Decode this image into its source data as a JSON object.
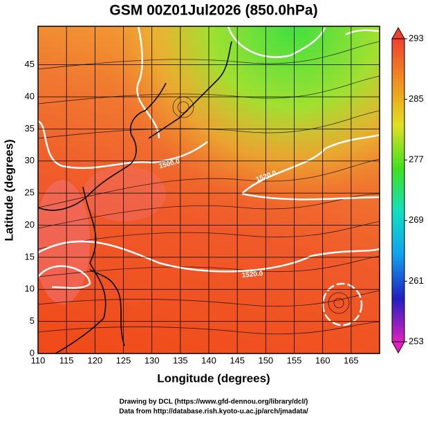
{
  "title": "GSM 00Z01Jul2026 (850.0hPa)",
  "map": {
    "xlabel": "Longitude (degrees)",
    "ylabel": "Latitude  (degrees)",
    "xlim": [
      110,
      170
    ],
    "ylim": [
      0,
      51
    ],
    "xticks": [
      110,
      115,
      120,
      125,
      130,
      135,
      140,
      145,
      150,
      155,
      160,
      165
    ],
    "yticks": [
      0,
      5,
      10,
      15,
      20,
      25,
      30,
      35,
      40,
      45
    ],
    "grid": true,
    "contour_labels": [
      "1500.0",
      "1520.0",
      "1520.0"
    ]
  },
  "colorbar": {
    "lim": [
      253,
      293
    ],
    "ticks": [
      253,
      261,
      269,
      277,
      285,
      293
    ],
    "colors": [
      "#e020c0",
      "#2020c0",
      "#10a0f0",
      "#10e0c0",
      "#40e020",
      "#e0e020",
      "#f09020",
      "#f04030"
    ]
  },
  "footer": [
    "Drawing by DCL (https://www.gfd-dennou.org/library/dcl/)",
    "Data from http://database.rish.kyoto-u.ac.jp/arch/jmadata/"
  ]
}
